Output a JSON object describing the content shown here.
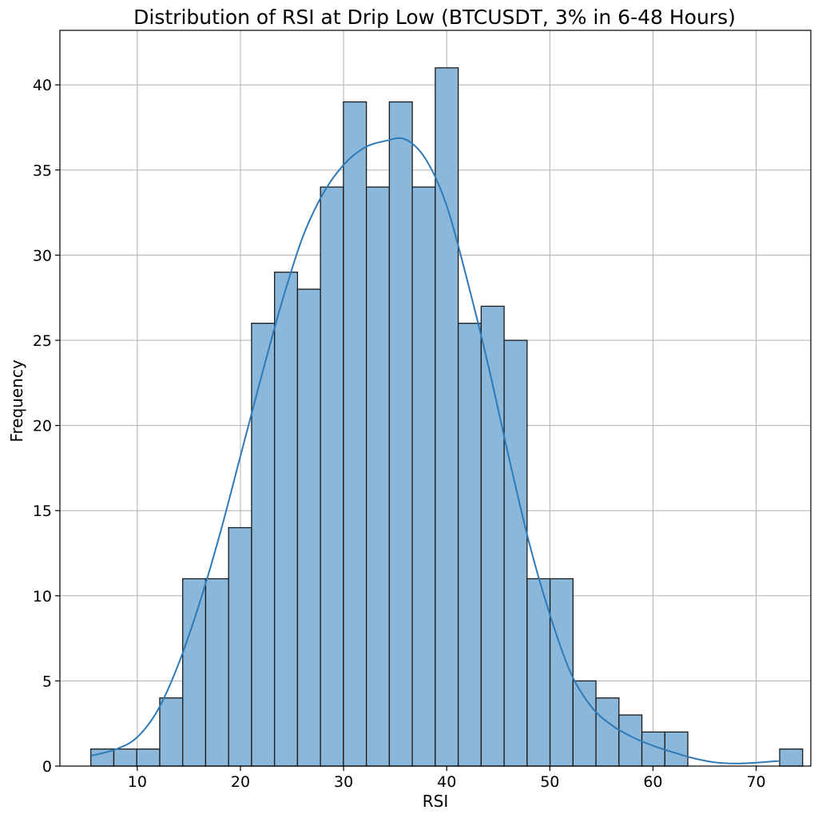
{
  "chart_data": {
    "type": "bar",
    "title": "Distribution of RSI at Drip Low (BTCUSDT, 3% in 6-48 Hours)",
    "xlabel": "RSI",
    "ylabel": "Frequency",
    "xlim": [
      2.5,
      75.3
    ],
    "ylim": [
      0,
      43.2
    ],
    "grid": true,
    "bin_start": 5.5,
    "bin_width": 2.226,
    "values": [
      1,
      1,
      1,
      4,
      11,
      11,
      14,
      26,
      29,
      28,
      34,
      39,
      34,
      39,
      34,
      41,
      26,
      27,
      25,
      11,
      11,
      5,
      4,
      3,
      2,
      2,
      0,
      0,
      0,
      0,
      1
    ],
    "x_ticks": [
      10,
      20,
      30,
      40,
      50,
      60,
      70
    ],
    "y_ticks": [
      0,
      5,
      10,
      15,
      20,
      25,
      30,
      35,
      40
    ],
    "kde": {
      "x": [
        5.5,
        8,
        10,
        12,
        14,
        16,
        18,
        20,
        22,
        24,
        26,
        28,
        30,
        32,
        34,
        36,
        38,
        40,
        42,
        44,
        46,
        48,
        50,
        52,
        54,
        56,
        58,
        60,
        62,
        64,
        66,
        68,
        70,
        72.2
      ],
      "y": [
        0.6,
        1.0,
        1.7,
        3.3,
        6.0,
        9.5,
        13.6,
        18.2,
        22.8,
        27.2,
        31.0,
        33.6,
        35.3,
        36.3,
        36.7,
        36.8,
        35.6,
        32.9,
        28.5,
        23.6,
        18.2,
        13.1,
        8.9,
        5.5,
        3.5,
        2.4,
        1.7,
        1.2,
        0.8,
        0.45,
        0.22,
        0.15,
        0.2,
        0.3
      ]
    }
  }
}
